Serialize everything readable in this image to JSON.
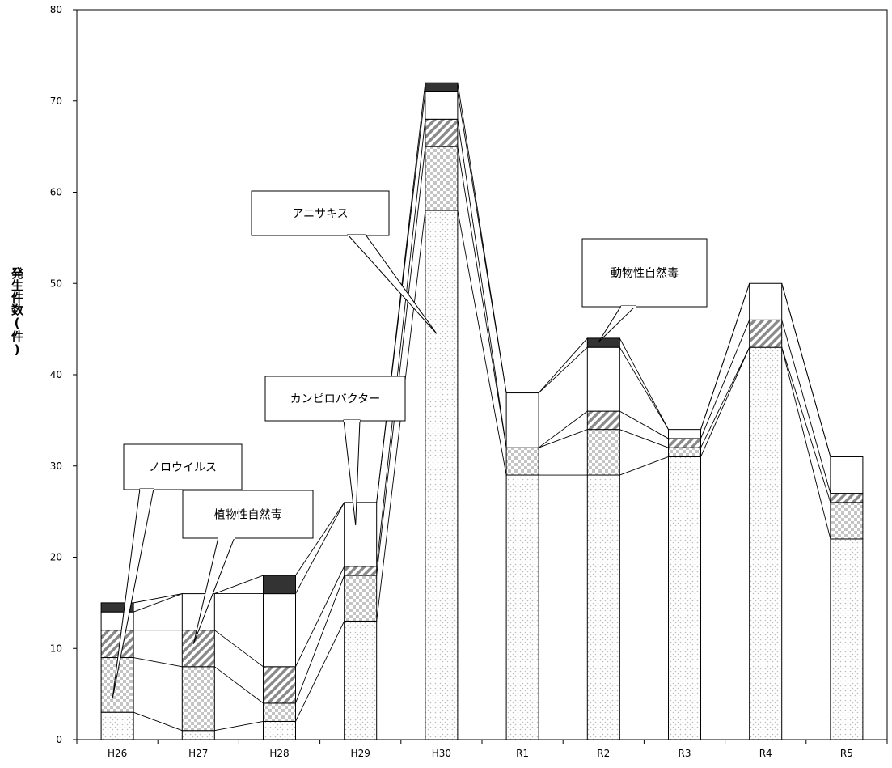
{
  "chart_data": {
    "type": "bar",
    "stacked": true,
    "ylabel": "発生件数(件)",
    "xlabel": "",
    "ylim": [
      0,
      80
    ],
    "yticks": [
      0,
      10,
      20,
      30,
      40,
      50,
      60,
      70,
      80
    ],
    "categories": [
      "H26",
      "H27",
      "H28",
      "H29",
      "H30",
      "R1",
      "R2",
      "R3",
      "R4",
      "R5"
    ],
    "grid": false,
    "series": [
      {
        "key": "s1",
        "values": [
          3,
          1,
          2,
          13,
          58,
          29,
          29,
          31,
          43,
          22
        ],
        "fill": "dots"
      },
      {
        "key": "s2",
        "values": [
          6,
          7,
          2,
          5,
          7,
          3,
          5,
          1,
          0,
          4
        ],
        "fill": "checker"
      },
      {
        "key": "s3",
        "values": [
          3,
          4,
          4,
          1,
          3,
          0,
          2,
          1,
          3,
          1
        ],
        "fill": "hatch"
      },
      {
        "key": "s4",
        "values": [
          2,
          4,
          8,
          7,
          3,
          6,
          7,
          1,
          4,
          4
        ],
        "fill": "white"
      },
      {
        "key": "s5",
        "values": [
          1,
          0,
          2,
          0,
          1,
          0,
          1,
          0,
          0,
          0
        ],
        "fill": "dark"
      }
    ],
    "callouts": [
      {
        "text": "ノロウイルス",
        "cat": 0,
        "y": 4.5
      },
      {
        "text": "植物性自然毒",
        "cat": 1,
        "y": 10.5
      },
      {
        "text": "カンピロバクター",
        "cat": 3,
        "y": 23.5
      },
      {
        "text": "アニサキス",
        "cat": 4,
        "y": 44.5
      },
      {
        "text": "動物性自然毒",
        "cat": 6,
        "y": 43.6
      }
    ]
  },
  "colors": {
    "dark": "#333333",
    "line": "#000000",
    "bg": "#ffffff"
  }
}
